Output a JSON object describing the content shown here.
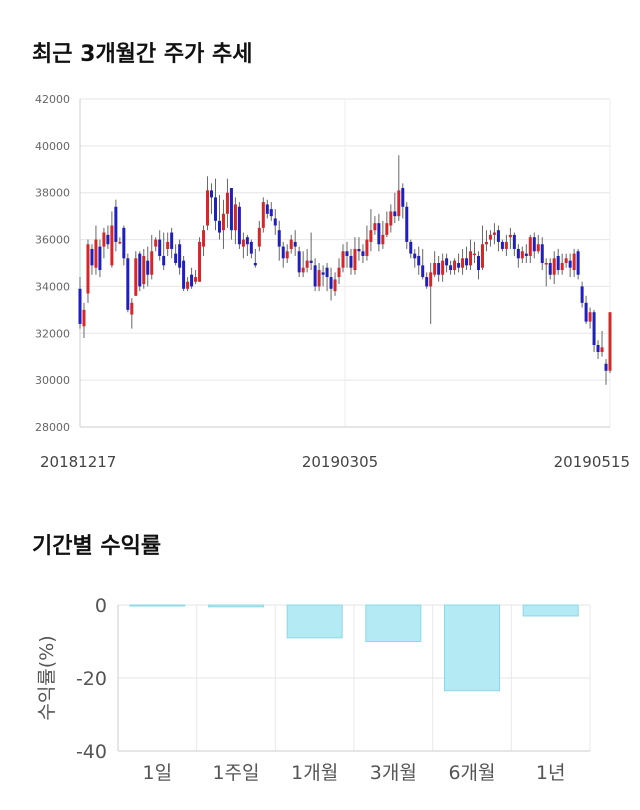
{
  "sections": {
    "price_title": "최근 3개월간 주가 추세",
    "returns_title": "기간별 수익률"
  },
  "chart_data": [
    {
      "type": "candlestick",
      "title": "최근 3개월간 주가 추세",
      "ylim": [
        28000,
        42000
      ],
      "y_ticks": [
        42000,
        40000,
        38000,
        36000,
        34000,
        32000,
        30000,
        28000
      ],
      "x_tick_labels": [
        "20181217",
        "20190305",
        "20190515"
      ],
      "grid": true,
      "colors": {
        "up": "#d62728",
        "down": "#1f1fbf",
        "wick": "#666666"
      },
      "candles": [
        [
          33900,
          32400,
          34400,
          32200
        ],
        [
          32300,
          33000,
          33300,
          31800
        ],
        [
          33700,
          35800,
          36000,
          33300
        ],
        [
          35600,
          34900,
          35800,
          34500
        ],
        [
          34800,
          36000,
          36600,
          34500
        ],
        [
          35700,
          34700,
          36000,
          34400
        ],
        [
          35700,
          36300,
          36500,
          35200
        ],
        [
          36200,
          35800,
          36600,
          35600
        ],
        [
          34900,
          36600,
          37200,
          34800
        ],
        [
          37400,
          35900,
          37700,
          35500
        ],
        [
          35900,
          35900,
          36100,
          35800
        ],
        [
          36500,
          35200,
          36600,
          34900
        ],
        [
          35200,
          33000,
          35400,
          32900
        ],
        [
          32800,
          33300,
          33500,
          32200
        ],
        [
          33600,
          35200,
          35500,
          33600
        ],
        [
          35400,
          34000,
          35500,
          33800
        ],
        [
          34100,
          35300,
          35600,
          33900
        ],
        [
          35100,
          34500,
          35700,
          34000
        ],
        [
          34500,
          35500,
          36200,
          34300
        ],
        [
          35700,
          36000,
          36100,
          35500
        ],
        [
          36000,
          35300,
          36400,
          35100
        ],
        [
          35300,
          34900,
          36300,
          34700
        ],
        [
          35600,
          35900,
          36300,
          35300
        ],
        [
          36300,
          35600,
          36500,
          35200
        ],
        [
          35400,
          35000,
          35800,
          34900
        ],
        [
          35800,
          34800,
          36000,
          34500
        ],
        [
          35100,
          33900,
          35300,
          33800
        ],
        [
          33900,
          34200,
          34400,
          33800
        ],
        [
          34500,
          34000,
          34800,
          33900
        ],
        [
          34200,
          34400,
          34700,
          34100
        ],
        [
          34200,
          35900,
          36100,
          34200
        ],
        [
          35700,
          36400,
          36600,
          35300
        ],
        [
          36600,
          38100,
          38700,
          36400
        ],
        [
          38100,
          37800,
          38400,
          37100
        ],
        [
          37800,
          36800,
          38600,
          36400
        ],
        [
          36800,
          36300,
          37900,
          36000
        ],
        [
          36400,
          37100,
          37700,
          35600
        ],
        [
          37100,
          38000,
          38600,
          36500
        ],
        [
          38200,
          36400,
          38200,
          36000
        ],
        [
          36400,
          37500,
          37800,
          35800
        ],
        [
          37400,
          35800,
          37600,
          35600
        ],
        [
          35700,
          36000,
          36300,
          35200
        ],
        [
          36100,
          35800,
          36200,
          35300
        ],
        [
          35900,
          35400,
          36000,
          35200
        ],
        [
          35000,
          34900,
          35600,
          34800
        ],
        [
          35700,
          36500,
          36800,
          35500
        ],
        [
          36500,
          37600,
          37800,
          36300
        ],
        [
          37500,
          37100,
          37700,
          36900
        ],
        [
          37300,
          37000,
          37600,
          36800
        ],
        [
          36900,
          36600,
          37300,
          36200
        ],
        [
          36400,
          35700,
          36800,
          35100
        ],
        [
          35700,
          35200,
          35900,
          34800
        ],
        [
          35200,
          35500,
          35800,
          35000
        ],
        [
          35600,
          36000,
          36200,
          35400
        ],
        [
          35900,
          35700,
          36400,
          35300
        ],
        [
          35500,
          34600,
          35700,
          34400
        ],
        [
          34600,
          34800,
          35500,
          34400
        ],
        [
          34800,
          35100,
          35600,
          34600
        ],
        [
          35100,
          35000,
          36300,
          34700
        ],
        [
          34900,
          34000,
          35200,
          33800
        ],
        [
          34000,
          34700,
          35000,
          33800
        ],
        [
          34600,
          34500,
          34900,
          34000
        ],
        [
          34800,
          34400,
          35000,
          33800
        ],
        [
          34400,
          33900,
          34800,
          33400
        ],
        [
          33800,
          34300,
          34600,
          33600
        ],
        [
          34400,
          34800,
          35200,
          34100
        ],
        [
          34800,
          35500,
          35800,
          34600
        ],
        [
          35500,
          35300,
          35900,
          34800
        ],
        [
          35300,
          34800,
          35600,
          34500
        ],
        [
          34700,
          35600,
          36100,
          34500
        ],
        [
          35600,
          35500,
          36100,
          35100
        ],
        [
          35500,
          35300,
          35800,
          35000
        ],
        [
          35300,
          36000,
          36600,
          35100
        ],
        [
          35900,
          36400,
          37300,
          35500
        ],
        [
          36400,
          36700,
          37000,
          36200
        ],
        [
          36700,
          35800,
          37100,
          35500
        ],
        [
          35800,
          36200,
          36800,
          35600
        ],
        [
          36200,
          36700,
          37200,
          36100
        ],
        [
          36600,
          37200,
          37500,
          36300
        ],
        [
          37200,
          37000,
          38000,
          36700
        ],
        [
          37000,
          38100,
          39600,
          36800
        ],
        [
          38200,
          37400,
          38400,
          36900
        ],
        [
          37400,
          35900,
          37600,
          35600
        ],
        [
          35900,
          35400,
          36000,
          35200
        ],
        [
          35400,
          35200,
          35600,
          34800
        ],
        [
          35300,
          34900,
          35700,
          34500
        ],
        [
          34900,
          34400,
          35600,
          34300
        ],
        [
          34400,
          34000,
          34600,
          33900
        ],
        [
          34000,
          34600,
          35000,
          32400
        ],
        [
          34500,
          35000,
          35500,
          34400
        ],
        [
          35000,
          34500,
          35300,
          34200
        ],
        [
          34500,
          35100,
          35400,
          34200
        ],
        [
          35200,
          34900,
          35400,
          34600
        ],
        [
          34900,
          34700,
          35100,
          34500
        ],
        [
          34700,
          35100,
          35200,
          34500
        ],
        [
          35000,
          34800,
          35400,
          34600
        ],
        [
          34800,
          35200,
          35600,
          34500
        ],
        [
          35200,
          34900,
          35700,
          34700
        ],
        [
          34900,
          35500,
          36000,
          34700
        ],
        [
          35400,
          35400,
          35900,
          35000
        ],
        [
          35300,
          34700,
          35500,
          34300
        ],
        [
          34800,
          35800,
          36600,
          34700
        ],
        [
          35800,
          35900,
          36400,
          35500
        ],
        [
          36000,
          36200,
          36400,
          35700
        ],
        [
          36200,
          36300,
          36700,
          35800
        ],
        [
          36400,
          35900,
          36600,
          35500
        ],
        [
          35900,
          35600,
          36000,
          35500
        ],
        [
          35600,
          35900,
          36200,
          35300
        ],
        [
          36100,
          36200,
          36500,
          35600
        ],
        [
          36200,
          35600,
          36300,
          35300
        ],
        [
          35600,
          35200,
          35800,
          34800
        ],
        [
          35200,
          35500,
          35700,
          35000
        ],
        [
          35400,
          35300,
          35800,
          35000
        ],
        [
          35300,
          36100,
          36200,
          35000
        ],
        [
          36100,
          35500,
          36300,
          35200
        ],
        [
          35500,
          35800,
          36200,
          35400
        ],
        [
          35800,
          35000,
          36100,
          34700
        ],
        [
          35000,
          35000,
          35200,
          34000
        ],
        [
          35000,
          34500,
          35200,
          34300
        ],
        [
          34500,
          35200,
          35500,
          34100
        ],
        [
          35300,
          34700,
          35600,
          34500
        ],
        [
          34700,
          35000,
          35400,
          34500
        ],
        [
          35000,
          35200,
          35400,
          34800
        ],
        [
          35100,
          34800,
          35400,
          34400
        ],
        [
          34700,
          35400,
          35600,
          34400
        ],
        [
          35500,
          34500,
          35600,
          34300
        ],
        [
          34000,
          33300,
          34200,
          33100
        ],
        [
          33300,
          32500,
          33600,
          32400
        ],
        [
          32500,
          32900,
          33100,
          32200
        ],
        [
          32900,
          31500,
          33000,
          31200
        ],
        [
          31500,
          31200,
          31700,
          30900
        ],
        [
          31200,
          31400,
          32100,
          31000
        ],
        [
          30700,
          30400,
          30900,
          29800
        ],
        [
          30400,
          32900,
          32900,
          30300
        ]
      ]
    },
    {
      "type": "bar",
      "title": "기간별 수익률",
      "ylabel": "수익률(%)",
      "ylim": [
        -40,
        0
      ],
      "y_ticks": [
        0,
        -20,
        -40
      ],
      "categories": [
        "1일",
        "1주일",
        "1개월",
        "3개월",
        "6개월",
        "1년"
      ],
      "values": [
        0.0,
        -0.5,
        -9.0,
        -10.0,
        -23.5,
        -3.0
      ],
      "grid": true,
      "colors": {
        "bar": "#b3eaf3",
        "bar_border": "#8fd8e6"
      }
    }
  ]
}
